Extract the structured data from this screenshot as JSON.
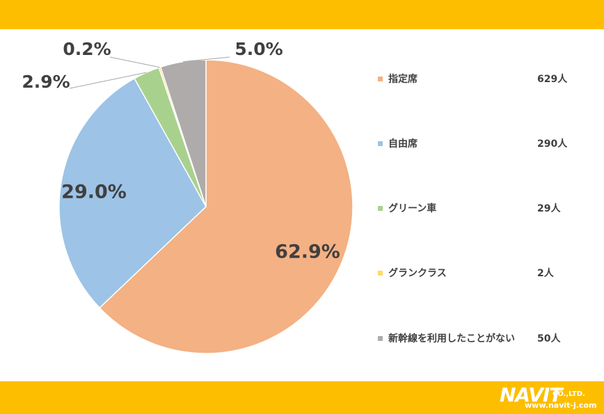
{
  "chart_data": {
    "type": "pie",
    "start_angle_deg": 0,
    "direction": "clockwise",
    "slices": [
      {
        "label": "指定席",
        "count": "629人",
        "value": 62.9,
        "value_label": "62.9%",
        "color": "#f4b183"
      },
      {
        "label": "自由席",
        "count": "290人",
        "value": 29.0,
        "value_label": "29.0%",
        "color": "#9dc3e6"
      },
      {
        "label": "グリーン車",
        "count": "29人",
        "value": 2.9,
        "value_label": "2.9%",
        "color": "#a9d18e"
      },
      {
        "label": "グランクラス",
        "count": "2人",
        "value": 0.2,
        "value_label": "0.2%",
        "color": "#ffd966"
      },
      {
        "label": "新幹線を利用したことがない",
        "count": "50人",
        "value": 5.0,
        "value_label": "5.0%",
        "color": "#afabab"
      }
    ],
    "legend_position": "right"
  },
  "colors": {
    "band": "#fdbe00",
    "text": "#404040"
  },
  "logo": {
    "name": "NAVIT",
    "suffix": "CO.,LTD.",
    "url": "www.navit-j.com"
  }
}
